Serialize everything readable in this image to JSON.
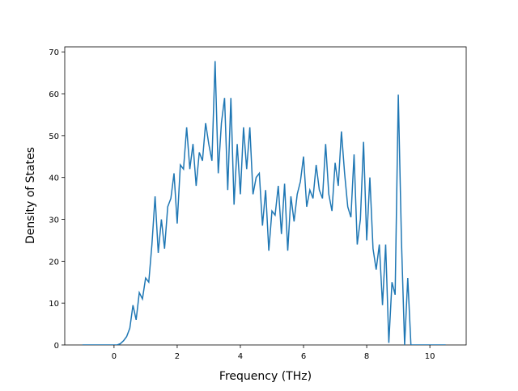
{
  "chart_data": {
    "type": "line",
    "xlabel": "Frequency (THz)",
    "ylabel": "Density of States",
    "xlim": [
      -1.56,
      11.15
    ],
    "ylim": [
      0,
      71.2
    ],
    "xticks": [
      0,
      2,
      4,
      6,
      8,
      10
    ],
    "yticks": [
      0,
      10,
      20,
      30,
      40,
      50,
      60,
      70
    ],
    "series": [
      {
        "color": "#1f77b4",
        "x": [
          -1.0,
          -0.9,
          -0.8,
          -0.7,
          -0.6,
          -0.5,
          -0.4,
          -0.3,
          -0.2,
          -0.1,
          0.0,
          0.1,
          0.2,
          0.3,
          0.4,
          0.5,
          0.6,
          0.7,
          0.8,
          0.9,
          1.0,
          1.1,
          1.2,
          1.3,
          1.4,
          1.5,
          1.6,
          1.7,
          1.8,
          1.9,
          2.0,
          2.1,
          2.2,
          2.3,
          2.4,
          2.5,
          2.6,
          2.7,
          2.8,
          2.9,
          3.0,
          3.1,
          3.2,
          3.3,
          3.4,
          3.5,
          3.6,
          3.7,
          3.8,
          3.9,
          4.0,
          4.1,
          4.2,
          4.3,
          4.4,
          4.5,
          4.6,
          4.7,
          4.8,
          4.9,
          5.0,
          5.1,
          5.2,
          5.3,
          5.4,
          5.5,
          5.6,
          5.7,
          5.8,
          5.9,
          6.0,
          6.1,
          6.2,
          6.3,
          6.4,
          6.5,
          6.6,
          6.7,
          6.8,
          6.9,
          7.0,
          7.1,
          7.2,
          7.3,
          7.4,
          7.5,
          7.6,
          7.7,
          7.8,
          7.9,
          8.0,
          8.1,
          8.2,
          8.3,
          8.4,
          8.5,
          8.6,
          8.7,
          8.8,
          8.9,
          9.0,
          9.1,
          9.2,
          9.3,
          9.4,
          9.5,
          9.6,
          9.7,
          9.8,
          9.9,
          10.0,
          10.1,
          10.2,
          10.3,
          10.4,
          10.5
        ],
        "values": [
          0,
          0,
          0,
          0,
          0,
          0,
          0,
          0,
          0,
          0,
          0,
          0,
          0.3,
          1,
          2,
          4,
          9.5,
          6,
          12.5,
          11,
          16,
          15,
          24,
          35.5,
          22,
          30,
          23,
          33,
          35,
          41,
          29,
          43,
          42,
          52,
          42,
          48,
          38,
          46,
          44,
          53,
          48,
          44,
          67.8,
          41,
          53,
          59,
          37,
          59,
          33.5,
          48,
          36,
          52,
          42,
          52,
          36,
          40,
          41,
          28.5,
          37,
          22.5,
          32,
          31,
          38,
          26.5,
          38.5,
          22.5,
          35.5,
          29.5,
          36,
          39,
          45,
          33,
          37,
          35,
          43,
          37,
          35,
          48,
          36,
          32,
          43.5,
          38,
          51,
          41,
          33,
          30.5,
          45.5,
          24,
          30,
          48.5,
          25,
          40,
          23,
          18,
          24,
          9.5,
          24,
          0.5,
          15,
          12,
          59.8,
          25,
          0,
          16,
          0,
          0,
          0,
          0,
          0,
          0,
          0,
          0,
          0,
          0,
          0,
          0
        ]
      }
    ]
  }
}
